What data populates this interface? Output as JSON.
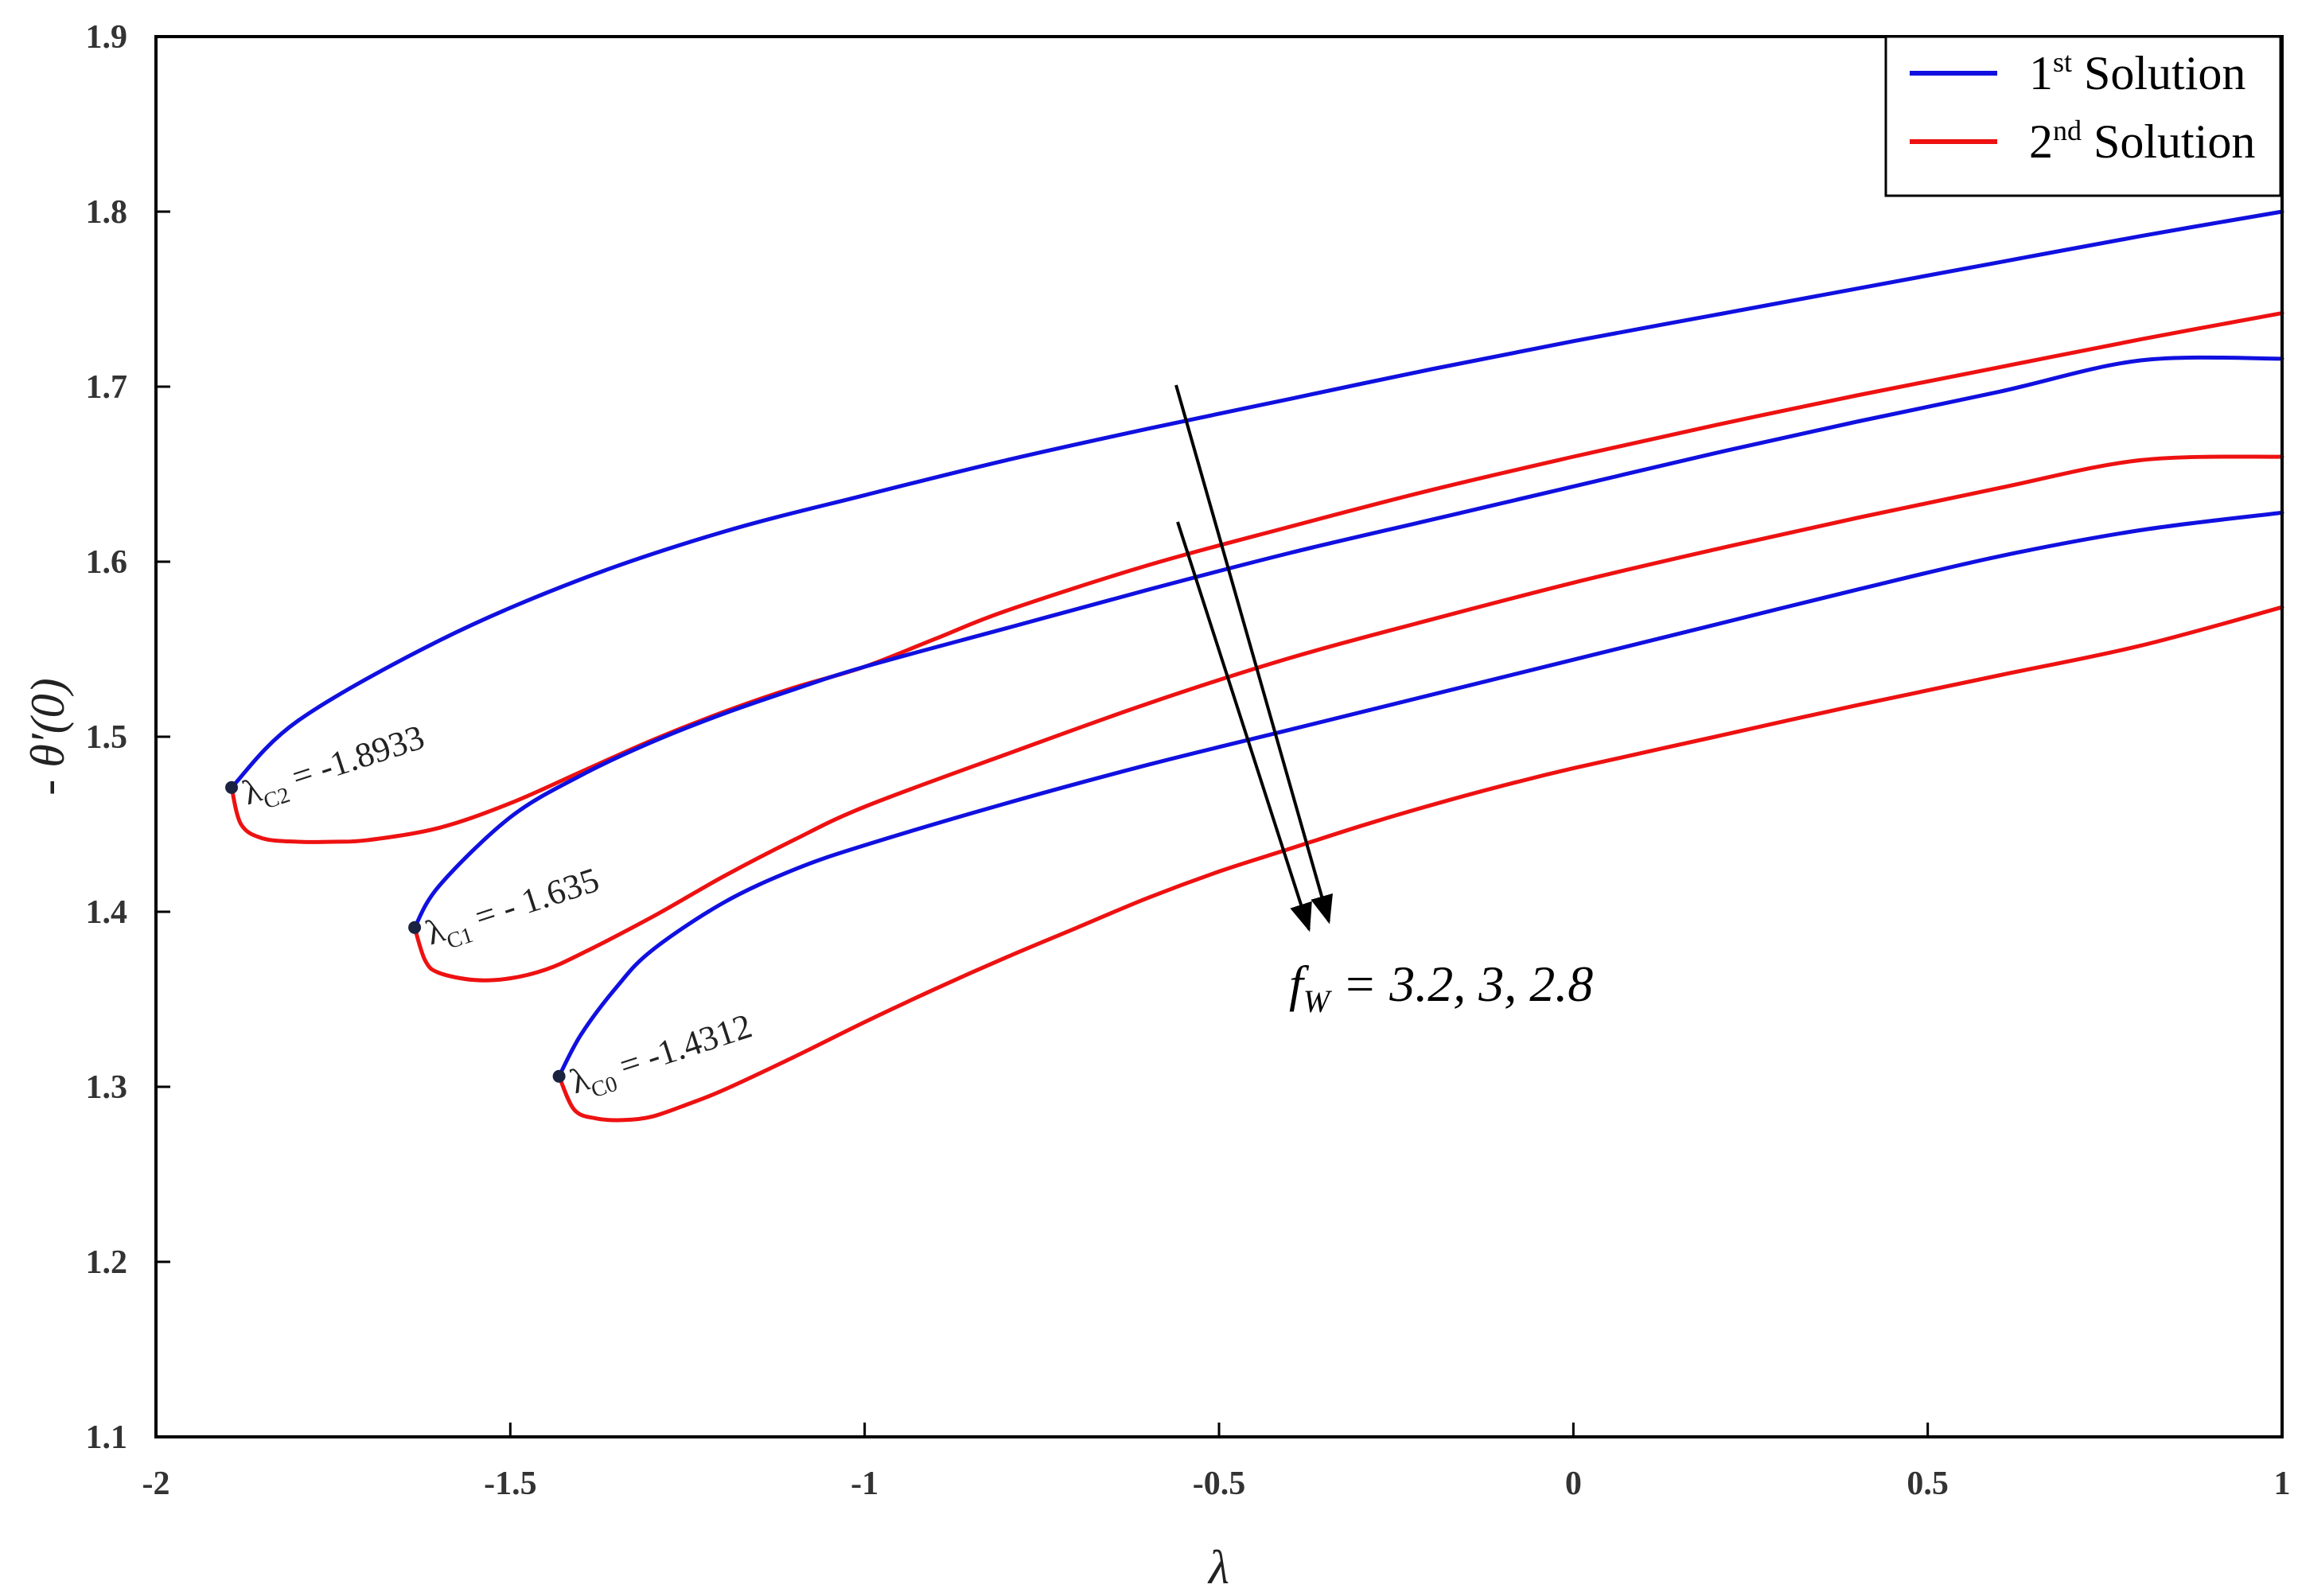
{
  "chart_data": {
    "type": "line",
    "xlabel": "λ",
    "ylabel": "- θ′(0)",
    "xlim": [
      -2,
      1
    ],
    "ylim": [
      1.1,
      1.9
    ],
    "x_ticks": [
      "-2",
      "-1.5",
      "-1",
      "-0.5",
      "0",
      "0.5",
      "1"
    ],
    "y_ticks": [
      "1.1",
      "1.2",
      "1.3",
      "1.4",
      "1.5",
      "1.6",
      "1.7",
      "1.8",
      "1.9"
    ],
    "colors": {
      "first": "#1010e0",
      "second": "#ee1111"
    },
    "legend": {
      "position": "top-right",
      "entries": [
        {
          "base": "1",
          "sup": "st",
          "text": " Solution",
          "color": "#1010e0"
        },
        {
          "base": "2",
          "sup": "nd",
          "text": " Solution",
          "color": "#ee1111"
        }
      ]
    },
    "series": [
      {
        "name": "1st Solution",
        "group": "fw = 3.2",
        "color": "#1010e0",
        "x": [
          -1.8933,
          -1.8,
          -1.6,
          -1.4,
          -1.2,
          -1.0,
          -0.8,
          -0.6,
          -0.4,
          -0.2,
          0.0,
          0.2,
          0.4,
          0.6,
          0.8,
          1.0
        ],
        "y": [
          1.471,
          1.509,
          1.555,
          1.59,
          1.617,
          1.638,
          1.658,
          1.676,
          1.693,
          1.71,
          1.726,
          1.741,
          1.756,
          1.771,
          1.786,
          1.8
        ]
      },
      {
        "name": "2nd Solution",
        "group": "fw = 3.2",
        "color": "#ee1111",
        "x": [
          -1.8933,
          -1.88,
          -1.85,
          -1.8,
          -1.75,
          -1.7,
          -1.6,
          -1.5,
          -1.4,
          -1.3,
          -1.2,
          -1.1,
          -1.0,
          -0.9,
          -0.8,
          -0.6,
          -0.4,
          -0.2,
          0.0,
          0.2,
          0.4,
          0.6,
          0.8,
          1.0
        ],
        "y": [
          1.471,
          1.45,
          1.442,
          1.44,
          1.44,
          1.441,
          1.448,
          1.462,
          1.48,
          1.498,
          1.514,
          1.528,
          1.54,
          1.556,
          1.572,
          1.598,
          1.62,
          1.641,
          1.66,
          1.678,
          1.695,
          1.711,
          1.727,
          1.742
        ]
      },
      {
        "name": "1st Solution",
        "group": "fw = 3",
        "color": "#1010e0",
        "x": [
          -1.635,
          -1.6,
          -1.5,
          -1.4,
          -1.3,
          -1.2,
          -1.1,
          -1.0,
          -0.8,
          -0.6,
          -0.4,
          -0.2,
          0.0,
          0.2,
          0.4,
          0.6,
          0.8,
          1.0
        ],
        "y": [
          1.391,
          1.415,
          1.454,
          1.478,
          1.497,
          1.513,
          1.527,
          1.54,
          1.562,
          1.584,
          1.605,
          1.624,
          1.643,
          1.662,
          1.68,
          1.697,
          1.715,
          1.716
        ]
      },
      {
        "name": "2nd Solution",
        "group": "fw = 3",
        "color": "#ee1111",
        "x": [
          -1.635,
          -1.62,
          -1.6,
          -1.55,
          -1.5,
          -1.45,
          -1.4,
          -1.3,
          -1.2,
          -1.1,
          -1.0,
          -0.8,
          -0.6,
          -0.4,
          -0.2,
          0.0,
          0.2,
          0.4,
          0.6,
          0.8,
          1.0
        ],
        "y": [
          1.391,
          1.372,
          1.365,
          1.361,
          1.362,
          1.367,
          1.376,
          1.397,
          1.42,
          1.441,
          1.46,
          1.49,
          1.519,
          1.545,
          1.567,
          1.588,
          1.607,
          1.625,
          1.642,
          1.658,
          1.66
        ]
      },
      {
        "name": "1st Solution",
        "group": "fw = 2.8",
        "color": "#1010e0",
        "x": [
          -1.4312,
          -1.4,
          -1.35,
          -1.3,
          -1.2,
          -1.1,
          -1.0,
          -0.8,
          -0.6,
          -0.4,
          -0.2,
          0.0,
          0.2,
          0.4,
          0.6,
          0.8,
          1.0
        ],
        "y": [
          1.306,
          1.33,
          1.357,
          1.378,
          1.405,
          1.424,
          1.438,
          1.462,
          1.484,
          1.504,
          1.524,
          1.544,
          1.564,
          1.584,
          1.603,
          1.618,
          1.628
        ]
      },
      {
        "name": "2nd Solution",
        "group": "fw = 2.8",
        "color": "#ee1111",
        "x": [
          -1.4312,
          -1.41,
          -1.38,
          -1.34,
          -1.3,
          -1.25,
          -1.2,
          -1.1,
          -1.0,
          -0.9,
          -0.8,
          -0.7,
          -0.6,
          -0.5,
          -0.4,
          -0.3,
          -0.2,
          -0.1,
          0.0,
          0.2,
          0.4,
          0.6,
          0.8,
          1.0
        ],
        "y": [
          1.306,
          1.287,
          1.282,
          1.281,
          1.283,
          1.29,
          1.298,
          1.317,
          1.337,
          1.356,
          1.374,
          1.391,
          1.408,
          1.423,
          1.436,
          1.449,
          1.461,
          1.472,
          1.482,
          1.5,
          1.518,
          1.535,
          1.552,
          1.574
        ]
      }
    ],
    "critical_points": [
      {
        "x": -1.8933,
        "y": 1.471,
        "label": "λ",
        "sub": "C2",
        "value": " = -1.8933"
      },
      {
        "x": -1.635,
        "y": 1.391,
        "label": "λ",
        "sub": "C1",
        "value": " = - 1.635"
      },
      {
        "x": -1.4312,
        "y": 1.306,
        "label": "λ",
        "sub": "C0",
        "value": " = -1.4312"
      }
    ],
    "annotation": {
      "f": "f",
      "sub": "W",
      "text": " = 3.2, 3, 2.8"
    }
  }
}
